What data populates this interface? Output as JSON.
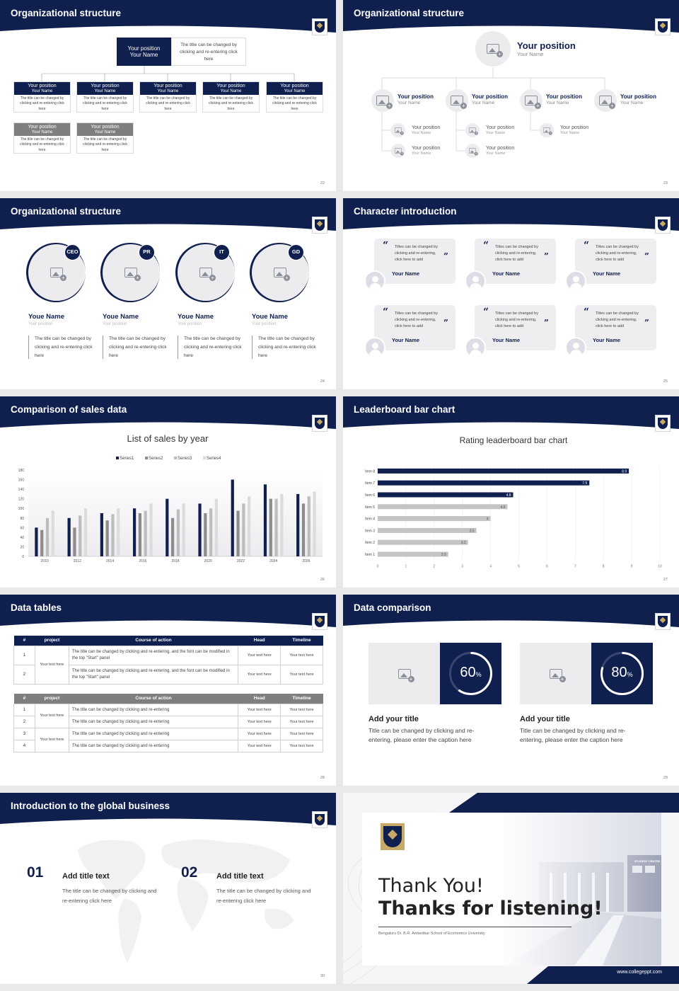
{
  "s22": {
    "title": "Organizational structure",
    "page": "22",
    "top": {
      "pos": "Your position",
      "name": "Your Name",
      "desc": "The title can be changed by clicking and re-entering click here"
    },
    "cards": [
      {
        "pos": "Your position",
        "name": "Your Name",
        "desc": "The title can be changed by clicking and re-entering click here"
      },
      {
        "pos": "Your position",
        "name": "Your Name",
        "desc": "The title can be changed by clicking and re-entering click here"
      },
      {
        "pos": "Your position",
        "name": "Your Name",
        "desc": "The title can be changed by clicking and re-entering click here"
      },
      {
        "pos": "Your position",
        "name": "Your Name",
        "desc": "The title can be changed by clicking and re-entering click here"
      },
      {
        "pos": "Your position",
        "name": "Your Name",
        "desc": "The title can be changed by clicking and re-entering click here"
      },
      {
        "pos": "Your position",
        "name": "Your Name",
        "desc": "The title can be changed by clicking and re-entering click here"
      },
      {
        "pos": "Your position",
        "name": "Your Name",
        "desc": "The title can be changed by clicking and re-entering click here"
      }
    ]
  },
  "s23": {
    "title": "Organizational structure",
    "page": "23",
    "top": {
      "pos": "Your position",
      "name": "Your Name"
    },
    "mid": [
      {
        "pos": "Your position",
        "name": "Your Name"
      },
      {
        "pos": "Your position",
        "name": "Your Name"
      },
      {
        "pos": "Your position",
        "name": "Your Name"
      },
      {
        "pos": "Your position",
        "name": "Your Name"
      }
    ],
    "sub": [
      {
        "pos": "Your position",
        "name": "Your Name"
      },
      {
        "pos": "Your position",
        "name": "Your Name"
      },
      {
        "pos": "Your position",
        "name": "Your Name"
      },
      {
        "pos": "Your position",
        "name": "Your Name"
      },
      {
        "pos": "Your position",
        "name": "Your Name"
      }
    ]
  },
  "s24": {
    "title": "Organizational structure",
    "page": "24",
    "people": [
      {
        "badge": "CEO",
        "name": "Youe Name",
        "pos": "Your position",
        "desc": "The title can be changed by clicking and re-entering click here"
      },
      {
        "badge": "PR",
        "name": "Youe Name",
        "pos": "Your position",
        "desc": "The title can be changed by clicking and re-entering click here"
      },
      {
        "badge": "IT",
        "name": "Youe Name",
        "pos": "Your position",
        "desc": "The title can be changed by clicking and re-entering click here"
      },
      {
        "badge": "GD",
        "name": "Youe Name",
        "pos": "Your position",
        "desc": "The title can be changed by clicking and re-entering click here"
      }
    ]
  },
  "s25": {
    "title": "Character introduction",
    "page": "25",
    "quotes": [
      {
        "text": "Titles can be changed by clicking and re-entering, click here to add",
        "name": "Your Name"
      },
      {
        "text": "Titles can be changed by clicking and re-entering, click here to add",
        "name": "Your Name"
      },
      {
        "text": "Titles can be changed by clicking and re-entering, click here to add",
        "name": "Your Name"
      },
      {
        "text": "Titles can be changed by clicking and re-entering, click here to add",
        "name": "Your Name"
      },
      {
        "text": "Titles can be changed by clicking and re-entering, click here to add",
        "name": "Your Name"
      },
      {
        "text": "Titles can be changed by clicking and re-entering, click here to add",
        "name": "Your Name"
      }
    ]
  },
  "s26": {
    "title": "Comparison of sales data",
    "page": "26"
  },
  "s27": {
    "title": "Leaderboard bar chart",
    "page": "27"
  },
  "s28": {
    "title": "Data tables",
    "page": "28",
    "t1": {
      "headers": [
        "#",
        "project",
        "Course of action",
        "Head",
        "Timeline"
      ],
      "group": "Your text here",
      "rows": [
        {
          "n": "1",
          "course": "The title can be changed by clicking and re-entering, and the font can be modified in the top \"Start\" panel",
          "head": "Your text here",
          "time": "Your text here"
        },
        {
          "n": "2",
          "course": "The title can be changed by clicking and re-entering, and the font can be modified in the top \"Start\" panel",
          "head": "Your text here",
          "time": "Your text here"
        }
      ]
    },
    "t2": {
      "headers": [
        "#",
        "project",
        "Course of action",
        "Head",
        "Timeline"
      ],
      "groups": [
        "Your text here",
        "Your text here"
      ],
      "rows": [
        {
          "n": "1",
          "course": "The title can be changed by clicking and re-entering",
          "head": "Your text here",
          "time": "Your text here"
        },
        {
          "n": "2",
          "course": "The title can be changed by clicking and re-entering",
          "head": "Your text here",
          "time": "Your text here"
        },
        {
          "n": "3",
          "course": "The title can be changed by clicking and re-entering",
          "head": "Your text here",
          "time": "Your text here"
        },
        {
          "n": "4",
          "course": "The title can be changed by clicking and re-entering",
          "head": "Your text here",
          "time": "Your text here"
        }
      ]
    }
  },
  "s29": {
    "title": "Data comparison",
    "page": "29",
    "items": [
      {
        "pct": "60",
        "unit": "%",
        "value": 0.6,
        "title": "Add your title",
        "desc": "Title can be changed by clicking and re-entering, please enter the caption here"
      },
      {
        "pct": "80",
        "unit": "%",
        "value": 0.8,
        "title": "Add your title",
        "desc": "Title can be changed by clicking and re-entering, please enter the caption here"
      }
    ]
  },
  "s30": {
    "title": "Introduction to the global business",
    "page": "30",
    "items": [
      {
        "num": "01",
        "title": "Add title text",
        "desc": "The title can be changed by clicking and re-entering click here"
      },
      {
        "num": "02",
        "title": "Add title text",
        "desc": "The title can be changed by clicking and re-entering click here"
      }
    ]
  },
  "s31": {
    "thank": "Thank You!",
    "thanks": "Thanks for listening!",
    "school": "Bengaluru Dr. B.R. Ambedkar School of Economics University",
    "url": "www.collegeppt.com",
    "sign": "STUDENT CENTRE"
  },
  "chart_data": [
    {
      "type": "bar",
      "title": "List of sales by year",
      "categories": [
        "2010",
        "2012",
        "2014",
        "2016",
        "2018",
        "2020",
        "2022",
        "2024",
        "2026"
      ],
      "series": [
        {
          "name": "Series1",
          "values": [
            60,
            80,
            90,
            100,
            120,
            110,
            160,
            150,
            130
          ],
          "color": "#0f1f4e"
        },
        {
          "name": "Series2",
          "values": [
            55,
            60,
            75,
            90,
            80,
            90,
            95,
            120,
            110
          ],
          "color": "#8c8c8c"
        },
        {
          "name": "Series3",
          "values": [
            80,
            85,
            88,
            95,
            98,
            100,
            110,
            120,
            125
          ],
          "color": "#bdbdbd"
        },
        {
          "name": "Series4",
          "values": [
            95,
            100,
            100,
            110,
            110,
            120,
            125,
            130,
            135
          ],
          "color": "#dcdcdc"
        }
      ],
      "ylim": [
        0,
        180
      ],
      "yticks": [
        "0",
        "20",
        "40",
        "60",
        "80",
        "100",
        "120",
        "140",
        "160",
        "180"
      ],
      "legend": "top-center",
      "grid": false
    },
    {
      "type": "bar",
      "orientation": "horizontal",
      "title": "Rating leaderboard bar chart",
      "categories": [
        "Item 8",
        "Item 7",
        "Item 6",
        "Item 5",
        "Item 4",
        "Item 3",
        "Item 2",
        "Item 1"
      ],
      "values": [
        8.9,
        7.5,
        4.8,
        4.6,
        4,
        3.5,
        3.2,
        2.5
      ],
      "labels": [
        "8.9",
        "7.5",
        "4.8",
        "4.6",
        "4",
        "3.5",
        "3.2",
        "2.5"
      ],
      "colors": [
        "#0f1f4e",
        "#0f1f4e",
        "#0f1f4e",
        "#c4c4c4",
        "#c4c4c4",
        "#c4c4c4",
        "#c4c4c4",
        "#c4c4c4"
      ],
      "xlim": [
        0,
        10
      ],
      "xticks": [
        "0",
        "1",
        "2",
        "3",
        "4",
        "5",
        "6",
        "7",
        "8",
        "9",
        "10"
      ],
      "grid": true
    }
  ]
}
